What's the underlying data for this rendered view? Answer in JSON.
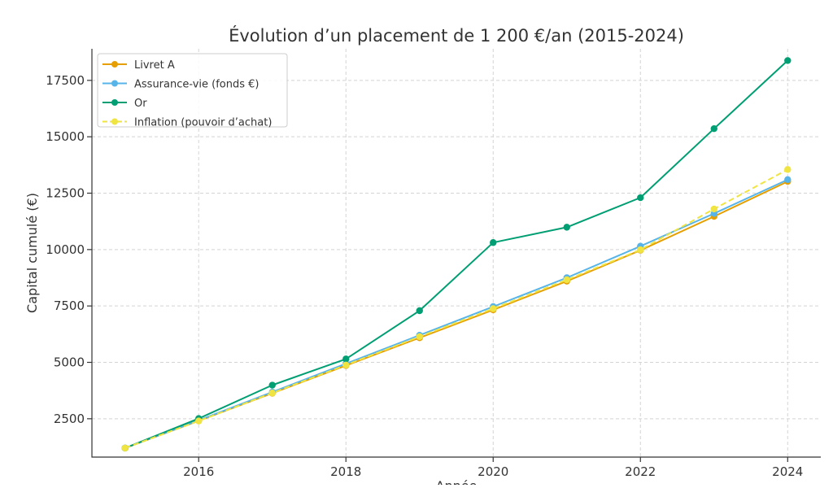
{
  "chart_data": {
    "type": "line",
    "title": "Évolution d’un placement de 1 200 €/an (2015-2024)",
    "xlabel": "Année",
    "ylabel": "Capital cumulé (€)",
    "x": [
      2015,
      2016,
      2017,
      2018,
      2019,
      2020,
      2021,
      2022,
      2023,
      2024
    ],
    "xlim": [
      2014.55,
      2024.45
    ],
    "ylim": [
      800,
      18900
    ],
    "xticks": [
      2016,
      2018,
      2020,
      2022,
      2024
    ],
    "yticks": [
      2500,
      5000,
      7500,
      10000,
      12500,
      15000,
      17500
    ],
    "grid": true,
    "legend_position": "top-left",
    "series": [
      {
        "name": "Livret A",
        "color": "#e69f00",
        "line_style": "solid",
        "values": [
          1200,
          2410,
          3630,
          4860,
          6090,
          7330,
          8600,
          9970,
          11470,
          13020
        ]
      },
      {
        "name": "Assurance-vie (fonds €)",
        "color": "#56b4e9",
        "line_style": "solid",
        "values": [
          1200,
          2430,
          3680,
          4940,
          6200,
          7470,
          8750,
          10150,
          11600,
          13100
        ]
      },
      {
        "name": "Or",
        "color": "#009e73",
        "line_style": "solid",
        "values": [
          1200,
          2510,
          3990,
          5150,
          7290,
          10310,
          10990,
          12300,
          15360,
          18380
        ]
      },
      {
        "name": "Inflation (pouvoir d’achat)",
        "color": "#f0e442",
        "line_style": "dashed",
        "values": [
          1200,
          2400,
          3640,
          4880,
          6140,
          7380,
          8660,
          9990,
          11800,
          13550
        ]
      }
    ]
  }
}
